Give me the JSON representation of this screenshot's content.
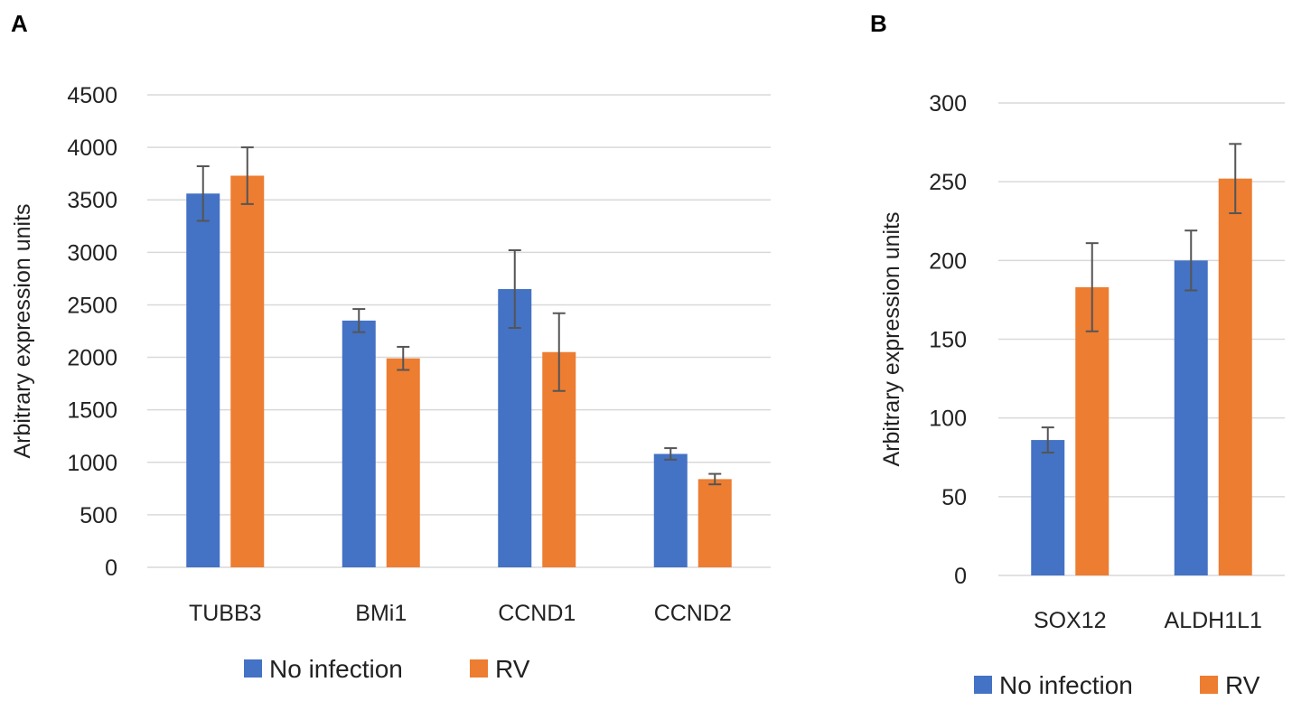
{
  "chart_data": [
    {
      "panel": "A",
      "type": "bar",
      "categories": [
        "TUBB3",
        "BMi1",
        "CCND1",
        "CCND2"
      ],
      "series": [
        {
          "name": "No infection",
          "color": "#4472C4",
          "values": [
            3560,
            2350,
            2650,
            1080
          ],
          "errors": [
            260,
            110,
            370,
            55
          ]
        },
        {
          "name": "RV",
          "color": "#ED7D31",
          "values": [
            3730,
            1990,
            2050,
            840
          ],
          "errors": [
            270,
            110,
            370,
            50
          ]
        }
      ],
      "ylabel": "Arbitrary expression units",
      "ylim": [
        0,
        4500
      ],
      "yticks": [
        0,
        500,
        1000,
        1500,
        2000,
        2500,
        3000,
        3500,
        4000,
        4500
      ],
      "grid": true,
      "legend": "bottom"
    },
    {
      "panel": "B",
      "type": "bar",
      "categories": [
        "SOX12",
        "ALDH1L1"
      ],
      "series": [
        {
          "name": "No infection",
          "color": "#4472C4",
          "values": [
            86,
            200
          ],
          "errors": [
            8,
            19
          ]
        },
        {
          "name": "RV",
          "color": "#ED7D31",
          "values": [
            183,
            252
          ],
          "errors": [
            28,
            22
          ]
        }
      ],
      "ylabel": "Arbitrary expression units",
      "ylim": [
        0,
        300
      ],
      "yticks": [
        0,
        50,
        100,
        150,
        200,
        250,
        300
      ],
      "grid": true,
      "legend": "bottom"
    }
  ]
}
